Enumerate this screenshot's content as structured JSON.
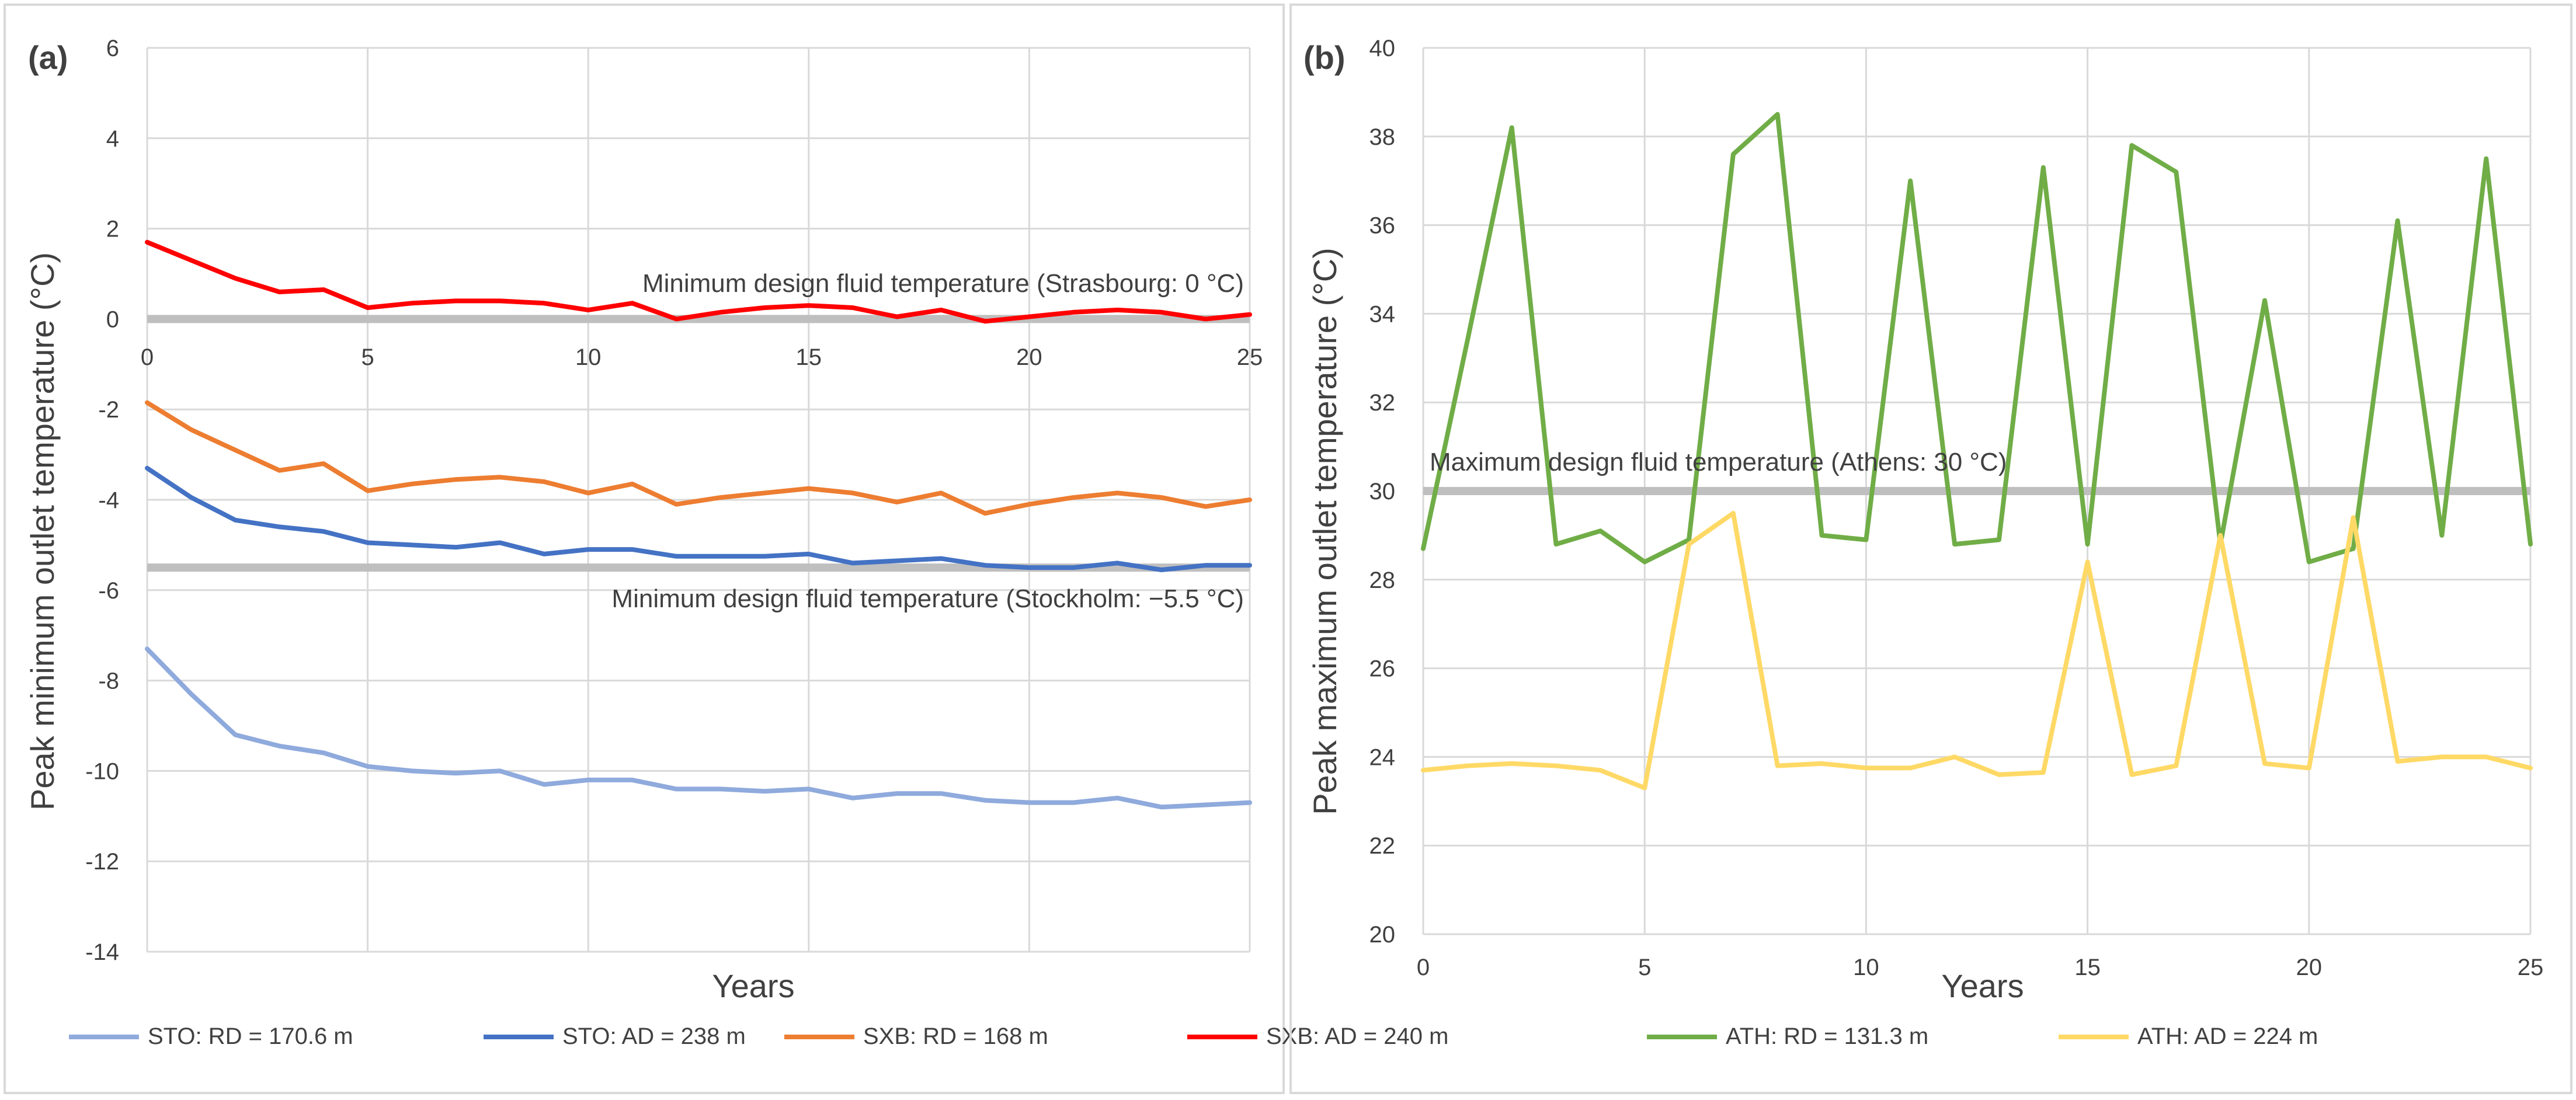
{
  "chart_data": [
    {
      "type": "line",
      "panel_label": "(a)",
      "xlabel": "Years",
      "ylabel": "Peak minimum outlet temperature (°C)",
      "xlim": [
        0,
        25
      ],
      "ylim": [
        -14,
        6
      ],
      "x_ticks": [
        0,
        5,
        10,
        15,
        20,
        25
      ],
      "y_ticks": [
        -14,
        -12,
        -10,
        -8,
        -6,
        -4,
        -2,
        0,
        2,
        4,
        6
      ],
      "x_tick_labels": [
        "0",
        "5",
        "10",
        "15",
        "20",
        "25"
      ],
      "y_tick_labels": [
        "-14",
        "-12",
        "-10",
        "-8",
        "-6",
        "-4",
        "-2",
        "0",
        "2",
        "4",
        "6"
      ],
      "grid": true,
      "legend_position": "bottom",
      "x": [
        0,
        1,
        2,
        3,
        4,
        5,
        6,
        7,
        8,
        9,
        10,
        11,
        12,
        13,
        14,
        15,
        16,
        17,
        18,
        19,
        20,
        21,
        22,
        23,
        24,
        25
      ],
      "series": [
        {
          "name": "STO: RD = 170.6 m",
          "color": "#8faadc",
          "values": [
            -7.3,
            -8.3,
            -9.2,
            -9.45,
            -9.6,
            -9.9,
            -10.0,
            -10.05,
            -10.0,
            -10.3,
            -10.2,
            -10.2,
            -10.4,
            -10.4,
            -10.45,
            -10.4,
            -10.6,
            -10.5,
            -10.5,
            -10.65,
            -10.7,
            -10.7,
            -10.6,
            -10.8,
            -10.75,
            -10.7
          ]
        },
        {
          "name": "STO: AD = 238 m",
          "color": "#4472c4",
          "values": [
            -3.3,
            -3.95,
            -4.45,
            -4.6,
            -4.7,
            -4.95,
            -5.0,
            -5.05,
            -4.95,
            -5.2,
            -5.1,
            -5.1,
            -5.25,
            -5.25,
            -5.25,
            -5.2,
            -5.4,
            -5.35,
            -5.3,
            -5.45,
            -5.5,
            -5.5,
            -5.4,
            -5.55,
            -5.45,
            -5.45
          ]
        },
        {
          "name": "SXB: RD = 168 m",
          "color": "#ed7d31",
          "values": [
            -1.85,
            -2.45,
            -2.9,
            -3.35,
            -3.2,
            -3.8,
            -3.65,
            -3.55,
            -3.5,
            -3.6,
            -3.85,
            -3.65,
            -4.1,
            -3.95,
            -3.85,
            -3.75,
            -3.85,
            -4.05,
            -3.85,
            -4.3,
            -4.1,
            -3.95,
            -3.85,
            -3.95,
            -4.15,
            -4.0
          ]
        },
        {
          "name": "SXB: AD = 240 m",
          "color": "#ff0000",
          "values": [
            1.7,
            1.3,
            0.9,
            0.6,
            0.65,
            0.25,
            0.35,
            0.4,
            0.4,
            0.35,
            0.2,
            0.35,
            0.0,
            0.15,
            0.25,
            0.3,
            0.25,
            0.05,
            0.2,
            -0.05,
            0.05,
            0.15,
            0.2,
            0.15,
            0.0,
            0.1
          ]
        }
      ],
      "reference_lines": [
        {
          "value": 0,
          "label": "Minimum design fluid temperature (Strasbourg: 0 °C)"
        },
        {
          "value": -5.5,
          "label": "Minimum design fluid temperature (Stockholm: −5.5 °C)"
        }
      ]
    },
    {
      "type": "line",
      "panel_label": "(b)",
      "xlabel": "Years",
      "ylabel": "Peak maximum outlet temperature (°C)",
      "xlim": [
        0,
        25
      ],
      "ylim": [
        20,
        40
      ],
      "x_ticks": [
        0,
        5,
        10,
        15,
        20,
        25
      ],
      "y_ticks": [
        20,
        22,
        24,
        26,
        28,
        30,
        32,
        34,
        36,
        38,
        40
      ],
      "x_tick_labels": [
        "0",
        "5",
        "10",
        "15",
        "20",
        "25"
      ],
      "y_tick_labels": [
        "20",
        "22",
        "24",
        "26",
        "28",
        "30",
        "32",
        "34",
        "36",
        "38",
        "40"
      ],
      "grid": true,
      "legend_position": "bottom",
      "x": [
        0,
        1,
        2,
        3,
        4,
        5,
        6,
        7,
        8,
        9,
        10,
        11,
        12,
        13,
        14,
        15,
        16,
        17,
        18,
        19,
        20,
        21,
        22,
        23,
        24,
        25
      ],
      "series": [
        {
          "name": "ATH: RD = 131.3 m",
          "color": "#70ad47",
          "values": [
            28.7,
            33.4,
            38.2,
            28.8,
            29.1,
            28.4,
            28.9,
            37.6,
            38.5,
            29.0,
            28.9,
            37.0,
            28.8,
            28.9,
            37.3,
            28.8,
            37.8,
            37.2,
            28.8,
            34.3,
            28.4,
            28.7,
            36.1,
            29.0,
            37.5,
            28.8
          ]
        },
        {
          "name": "ATH: AD = 224 m",
          "color": "#ffd966",
          "values": [
            23.7,
            23.8,
            23.85,
            23.8,
            23.7,
            23.3,
            28.8,
            29.5,
            23.8,
            23.85,
            23.75,
            23.75,
            24.0,
            23.6,
            23.65,
            28.4,
            23.6,
            23.8,
            29.0,
            23.85,
            23.75,
            29.4,
            23.9,
            24.0,
            24.0,
            23.75
          ]
        }
      ],
      "reference_lines": [
        {
          "value": 30,
          "label": "Maximum design fluid temperature (Athens: 30 °C)"
        }
      ]
    }
  ]
}
